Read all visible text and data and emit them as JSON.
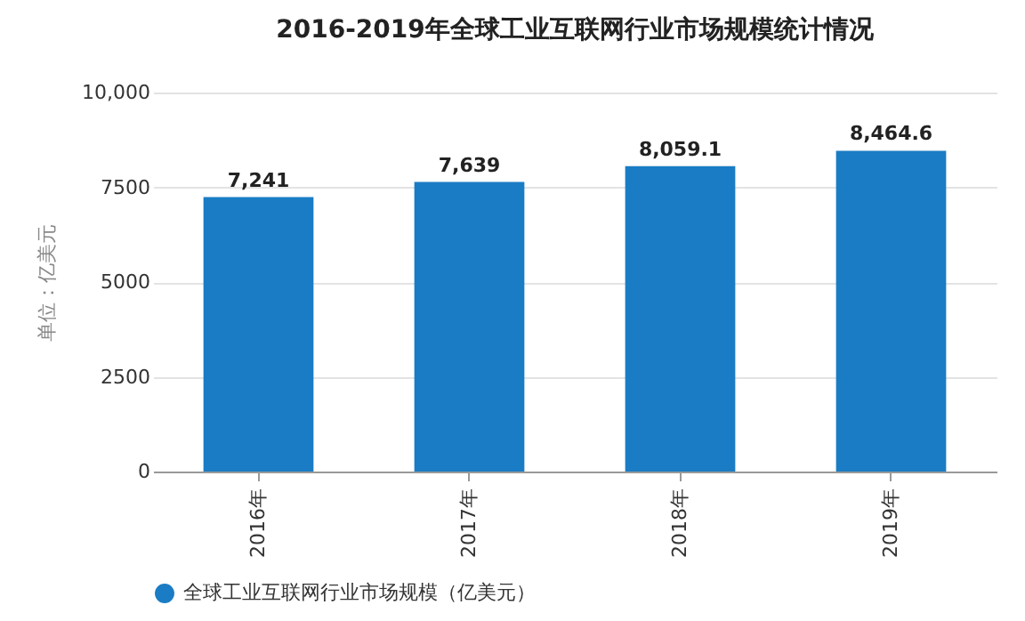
{
  "chart_data": {
    "type": "bar",
    "title": "2016-2019年全球工业互联网行业市场规模统计情况",
    "ylabel": "单位：亿美元",
    "categories": [
      "2016年",
      "2017年",
      "2018年",
      "2019年"
    ],
    "series": [
      {
        "name": "全球工业互联网行业市场规模（亿美元）",
        "color": "#1a7cc4",
        "values": [
          7241,
          7639,
          8059.1,
          8464.6
        ],
        "value_labels": [
          "7,241",
          "7,639",
          "8,059.1",
          "8,464.6"
        ]
      }
    ],
    "ylim": [
      0,
      10000
    ],
    "yticks": [
      0,
      2500,
      5000,
      7500,
      {
        "value": 10000,
        "label": "10,000"
      }
    ],
    "grid": "y",
    "legend": "bottom"
  }
}
